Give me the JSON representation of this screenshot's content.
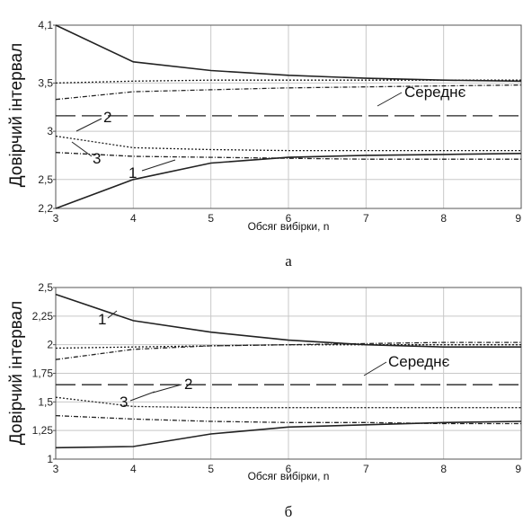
{
  "chart_data": [
    {
      "type": "line",
      "caption": "а",
      "xlabel": "Обсяг вибірки, n",
      "ylabel": "Довірчий інтервал",
      "xlim": [
        3,
        9
      ],
      "ylim": [
        2.2,
        4.1
      ],
      "xticks": [
        3,
        4,
        5,
        6,
        7,
        8,
        9
      ],
      "yticks": [
        2.2,
        2.5,
        3,
        3.5,
        4.1
      ],
      "ytick_labels": [
        "2,2",
        "2,5",
        "3",
        "3,5",
        "4,1"
      ],
      "grid": true,
      "series": [
        {
          "label": "1",
          "style": "solid",
          "x": [
            3,
            4,
            5,
            6,
            7,
            8,
            9
          ],
          "lower": [
            2.2,
            2.5,
            2.67,
            2.73,
            2.75,
            2.76,
            2.77
          ],
          "upper": [
            4.1,
            3.72,
            3.63,
            3.58,
            3.55,
            3.53,
            3.52
          ]
        },
        {
          "label": "2",
          "style": "dotted",
          "x": [
            3,
            4,
            5,
            6,
            7,
            8,
            9
          ],
          "lower": [
            2.95,
            2.83,
            2.81,
            2.8,
            2.8,
            2.8,
            2.8
          ],
          "upper": [
            3.5,
            3.52,
            3.53,
            3.53,
            3.53,
            3.53,
            3.53
          ]
        },
        {
          "label": "3",
          "style": "dashdot",
          "x": [
            3,
            4,
            5,
            6,
            7,
            8,
            9
          ],
          "lower": [
            2.78,
            2.74,
            2.73,
            2.72,
            2.71,
            2.71,
            2.71
          ],
          "upper": [
            3.33,
            3.41,
            3.43,
            3.45,
            3.46,
            3.47,
            3.48
          ]
        },
        {
          "label": "Середнє",
          "style": "dashed",
          "x": [
            3,
            9
          ],
          "values": [
            3.16,
            3.16
          ]
        }
      ]
    },
    {
      "type": "line",
      "caption": "б",
      "xlabel": "Обсяг вибірки, n",
      "ylabel": "Довірчий інтервал",
      "xlim": [
        3,
        9
      ],
      "ylim": [
        1.0,
        2.5
      ],
      "xticks": [
        3,
        4,
        5,
        6,
        7,
        8,
        9
      ],
      "yticks": [
        1,
        1.25,
        1.5,
        1.75,
        2,
        2.25,
        2.5
      ],
      "ytick_labels": [
        "1",
        "1,25",
        "1,5",
        "1,75",
        "2",
        "2,25",
        "2,5"
      ],
      "grid": true,
      "series": [
        {
          "label": "1",
          "style": "solid",
          "x": [
            3,
            4,
            5,
            6,
            7,
            8,
            9
          ],
          "lower": [
            1.1,
            1.11,
            1.22,
            1.28,
            1.3,
            1.32,
            1.33
          ],
          "upper": [
            2.44,
            2.21,
            2.11,
            2.04,
            2.0,
            1.98,
            1.98
          ]
        },
        {
          "label": "2",
          "style": "dotted",
          "x": [
            3,
            4,
            5,
            6,
            7,
            8,
            9
          ],
          "lower": [
            1.54,
            1.46,
            1.45,
            1.45,
            1.45,
            1.45,
            1.45
          ],
          "upper": [
            1.97,
            1.98,
            1.99,
            2.0,
            2.0,
            2.0,
            2.0
          ]
        },
        {
          "label": "3",
          "style": "dashdot",
          "x": [
            3,
            4,
            5,
            6,
            7,
            8,
            9
          ],
          "lower": [
            1.38,
            1.35,
            1.33,
            1.32,
            1.32,
            1.31,
            1.31
          ],
          "upper": [
            1.87,
            1.96,
            1.99,
            2.0,
            2.01,
            2.02,
            2.02
          ]
        },
        {
          "label": "Середнє",
          "style": "dashed",
          "x": [
            3,
            9
          ],
          "values": [
            1.65,
            1.65
          ]
        }
      ]
    }
  ]
}
